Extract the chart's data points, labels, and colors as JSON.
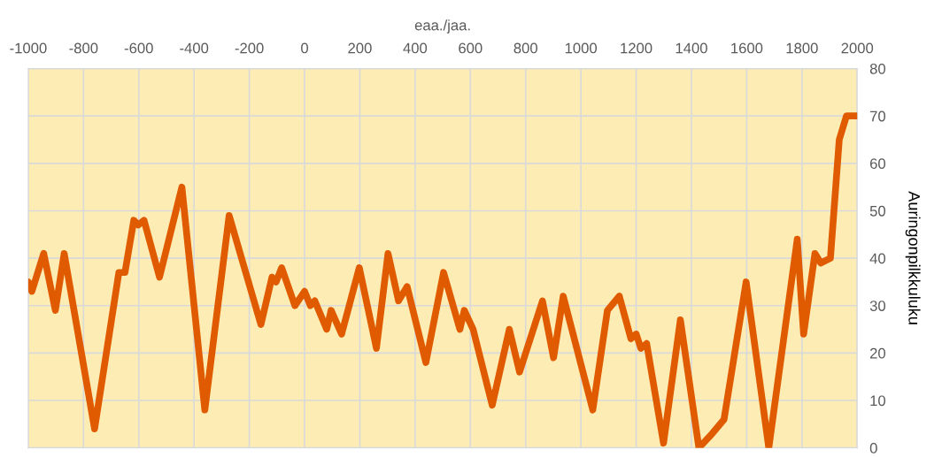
{
  "chart_data": {
    "type": "line",
    "xlabel": "eaa./jaa.",
    "ylabel": "Auringonpilkkuluku",
    "x": [
      -1000,
      -987,
      -944,
      -902,
      -870,
      -760,
      -672,
      -650,
      -618,
      -602,
      -581,
      -525,
      -444,
      -361,
      -273,
      -158,
      -118,
      -103,
      -83,
      -35,
      0,
      21,
      37,
      80,
      96,
      134,
      198,
      260,
      302,
      340,
      371,
      439,
      503,
      562,
      578,
      610,
      679,
      741,
      778,
      861,
      901,
      936,
      1043,
      1096,
      1139,
      1181,
      1200,
      1217,
      1238,
      1299,
      1360,
      1427,
      1475,
      1518,
      1598,
      1680,
      1783,
      1806,
      1847,
      1868,
      1903,
      1935,
      1961,
      2000
    ],
    "series": [
      {
        "color": "#e05a00",
        "values": [
          35,
          33,
          41,
          29,
          41,
          4,
          37,
          37,
          48,
          47,
          48,
          36,
          55,
          8,
          49,
          26,
          36,
          35,
          38,
          30,
          33,
          30,
          31,
          25,
          29,
          24,
          38,
          21,
          41,
          31,
          34,
          18,
          37,
          25,
          29,
          25,
          9,
          25,
          16,
          31,
          19,
          32,
          8,
          29,
          32,
          23,
          24,
          21,
          22,
          1,
          27,
          0,
          3,
          6,
          35,
          0,
          44,
          24,
          41,
          39,
          40,
          65,
          70,
          70
        ]
      }
    ],
    "xlim": [
      -1000,
      2000
    ],
    "xticks": [
      -1000,
      -800,
      -600,
      -400,
      -200,
      0,
      200,
      400,
      600,
      800,
      1000,
      1200,
      1400,
      1600,
      1800,
      2000
    ],
    "ylim": [
      0,
      80
    ],
    "yticks": [
      0,
      10,
      20,
      30,
      40,
      50,
      60,
      70,
      80
    ],
    "grid": true,
    "legend": false,
    "marker": "none",
    "line_style": "solid"
  }
}
